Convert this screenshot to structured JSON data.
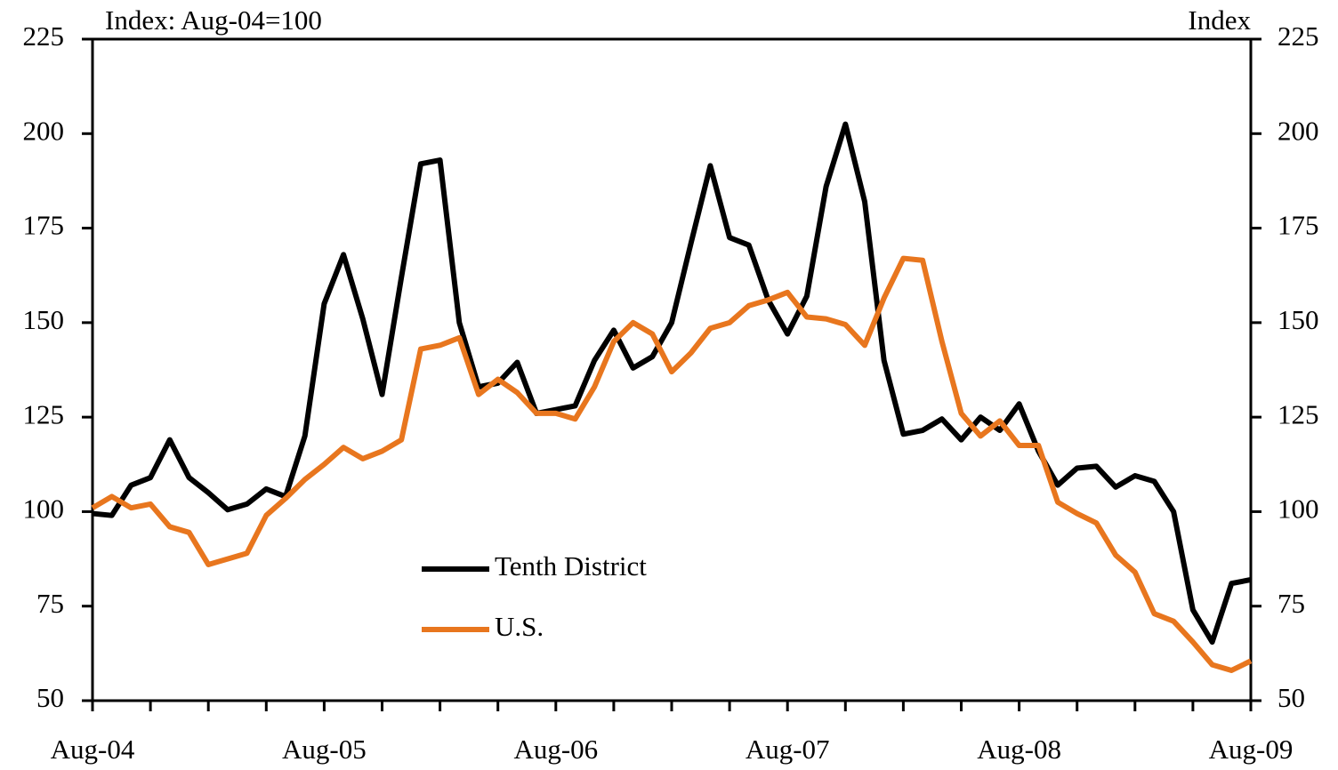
{
  "chart_data": {
    "type": "line",
    "y_label": "Index: Aug-04=100",
    "y2_label": "Index",
    "categories": [
      "Aug-04",
      null,
      null,
      null,
      null,
      null,
      null,
      null,
      null,
      null,
      null,
      null,
      "Aug-05",
      null,
      null,
      null,
      null,
      null,
      null,
      null,
      null,
      null,
      null,
      null,
      "Aug-06",
      null,
      null,
      null,
      null,
      null,
      null,
      null,
      null,
      null,
      null,
      null,
      "Aug-07",
      null,
      null,
      null,
      null,
      null,
      null,
      null,
      null,
      null,
      null,
      null,
      "Aug-08",
      null,
      null,
      null,
      null,
      null,
      null,
      null,
      null,
      null,
      null,
      null,
      "Aug-09"
    ],
    "series": [
      {
        "name": "Tenth District",
        "color": "#000000",
        "values": [
          99.5,
          99,
          107,
          109,
          119,
          109,
          105,
          100.5,
          102,
          106,
          104,
          120,
          155,
          168,
          151,
          131,
          162,
          192,
          193,
          150,
          133,
          134,
          139.5,
          126,
          127,
          128,
          140,
          148,
          138,
          141,
          150,
          171,
          191.5,
          172.5,
          170.5,
          156,
          147,
          157,
          186,
          202.5,
          182,
          140,
          120.5,
          121.5,
          124.5,
          119,
          125,
          121.5,
          128.5,
          116,
          107,
          111.5,
          112,
          106.5,
          109.5,
          108,
          100,
          74,
          65.5,
          81,
          82
        ]
      },
      {
        "name": "U.S.",
        "color": "#e8761e",
        "values": [
          101,
          104,
          101,
          102,
          96,
          94.5,
          86,
          87.5,
          89,
          99,
          103.5,
          108.5,
          112.5,
          117,
          114,
          116,
          119,
          143,
          144,
          146,
          131,
          135,
          131.5,
          126,
          126,
          124.5,
          133,
          145,
          150,
          147,
          137,
          142,
          148.5,
          150,
          154.5,
          156,
          158,
          151.5,
          151,
          149.5,
          144,
          156.5,
          167,
          166.5,
          145,
          126,
          120,
          124,
          117.5,
          117.5,
          102.5,
          99.5,
          97,
          88.5,
          84,
          73,
          71,
          65.5,
          59.5,
          58,
          60.5
        ]
      }
    ],
    "ylim": [
      50,
      225
    ],
    "yticks": [
      50,
      75,
      100,
      125,
      150,
      175,
      200,
      225
    ],
    "y2lim": [
      50,
      225
    ],
    "y2ticks": [
      50,
      75,
      100,
      125,
      150,
      175,
      200,
      225
    ],
    "grid": false
  }
}
